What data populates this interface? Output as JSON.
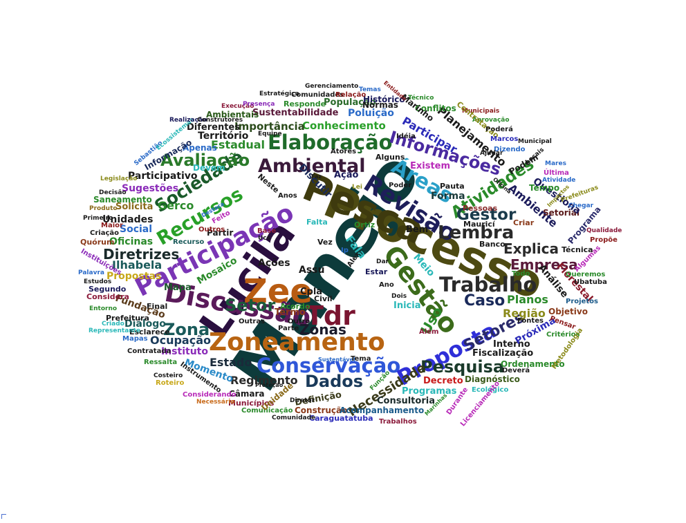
{
  "word_cloud": {
    "words": [
      {
        "text": "Manejo",
        "color": "#0d3b3b"
      },
      {
        "text": "Processo",
        "color": "#4d4a12"
      },
      {
        "text": "Pesca",
        "color": "#3e3a0e"
      },
      {
        "text": "Lucila",
        "color": "#2a0f3f"
      },
      {
        "text": "Zee",
        "color": "#b85c12"
      },
      {
        "text": "Gestão",
        "color": "#3c6b1b"
      },
      {
        "text": "Discussão",
        "color": "#5a1a5a"
      },
      {
        "text": "Participação",
        "color": "#7a35b5"
      },
      {
        "text": "Zoneamento",
        "color": "#b86412"
      },
      {
        "text": "Tdr",
        "color": "#7a1430"
      },
      {
        "text": "Revisão",
        "color": "#1e1e5a"
      },
      {
        "text": "Conservação",
        "color": "#2f57d8"
      },
      {
        "text": "Trabalho",
        "color": "#2a2a2a"
      },
      {
        "text": "Proposta",
        "color": "#2f2fd8"
      },
      {
        "text": "Elaboração",
        "color": "#1f6b2a"
      },
      {
        "text": "Ambiental",
        "color": "#3a1a3a"
      },
      {
        "text": "Recursos",
        "color": "#28a028"
      },
      {
        "text": "Sociedade",
        "color": "#1a5a2a"
      },
      {
        "text": "Informações",
        "color": "#4a2aa0"
      },
      {
        "text": "Áreas",
        "color": "#2aa0c8"
      },
      {
        "text": "Atividades",
        "color": "#2a8a2a"
      },
      {
        "text": "Lembra",
        "color": "#2a2a2a"
      },
      {
        "text": "Gestor",
        "color": "#1a3a4a"
      },
      {
        "text": "Setor",
        "color": "#1a5a3a"
      },
      {
        "text": "Dados",
        "color": "#1a3a5a"
      },
      {
        "text": "Pesquisa",
        "color": "#1a3a2a"
      },
      {
        "text": "Caso",
        "color": "#1a2a5a"
      },
      {
        "text": "Setores",
        "color": "#2a2a6a"
      },
      {
        "text": "Empresa",
        "color": "#5a1a3a"
      },
      {
        "text": "Explica",
        "color": "#2a2a2a"
      },
      {
        "text": "Avaliação",
        "color": "#2a7a2a"
      },
      {
        "text": "Diretrizes",
        "color": "#1a2a2a"
      },
      {
        "text": "Zona",
        "color": "#1a5a5a"
      },
      {
        "text": "Zonas",
        "color": "#1a1a2a"
      },
      {
        "text": "Estado",
        "color": "#1a2a3a"
      },
      {
        "text": "Regimento",
        "color": "#2a2a2a"
      },
      {
        "text": "Necessidade",
        "color": "#3a3a1a"
      },
      {
        "text": "Uso",
        "color": "#2a8a2a"
      },
      {
        "text": "Planos",
        "color": "#2a8a2a"
      },
      {
        "text": "Região",
        "color": "#8a8a1a"
      },
      {
        "text": "Conhecimento",
        "color": "#2aa02a"
      },
      {
        "text": "Planejamento",
        "color": "#1a1a1a"
      },
      {
        "text": "Participar",
        "color": "#2a2ab8"
      },
      {
        "text": "Ambiente",
        "color": "#1a1a5a"
      },
      {
        "text": "Estadual",
        "color": "#2a8a2a"
      },
      {
        "text": "Importância",
        "color": "#2a4a1a"
      },
      {
        "text": "Território",
        "color": "#1a1a1a"
      },
      {
        "text": "Sustentabilidade",
        "color": "#5a1a3a"
      },
      {
        "text": "Sugestões",
        "color": "#8a2ab8"
      },
      {
        "text": "Participativo",
        "color": "#1a1a1a"
      },
      {
        "text": "Unidades",
        "color": "#1a1a1a"
      },
      {
        "text": "Oficinas",
        "color": "#2a8a2a"
      },
      {
        "text": "Social",
        "color": "#2a6ac8"
      },
      {
        "text": "Ilhabela",
        "color": "#1a5a5a"
      },
      {
        "text": "Propostas",
        "color": "#c8a81a"
      },
      {
        "text": "Ações",
        "color": "#1a1a1a"
      },
      {
        "text": "Mosaico",
        "color": "#2a8a2a"
      },
      {
        "text": "Mapa",
        "color": "#1a5a2a"
      },
      {
        "text": "Fundação",
        "color": "#5a3a1a"
      },
      {
        "text": "Diálogo",
        "color": "#1a5a5a"
      },
      {
        "text": "Ocupação",
        "color": "#1a3a5a"
      },
      {
        "text": "Instituto",
        "color": "#8a2ab8"
      },
      {
        "text": "Momento",
        "color": "#2a8ac8"
      },
      {
        "text": "Definição",
        "color": "#3a3a1a"
      },
      {
        "text": "Construção",
        "color": "#8a3a1a"
      },
      {
        "text": "Acompanhamento",
        "color": "#1a5a8a"
      },
      {
        "text": "Consultoria",
        "color": "#1a2a2a"
      },
      {
        "text": "Programas",
        "color": "#2ab8b8"
      },
      {
        "text": "Decreto",
        "color": "#c81a1a"
      },
      {
        "text": "Diagnóstico",
        "color": "#3a5a1a"
      },
      {
        "text": "Fiscalização",
        "color": "#1a1a1a"
      },
      {
        "text": "Ordenamento",
        "color": "#2a8a2a"
      },
      {
        "text": "Interno",
        "color": "#1a1a1a"
      },
      {
        "text": "Próxima",
        "color": "#2a2ab8"
      },
      {
        "text": "Análise",
        "color": "#1a1a1a"
      },
      {
        "text": "Florestal",
        "color": "#8a1a2a"
      },
      {
        "text": "Objetivo",
        "color": "#8a3a1a"
      },
      {
        "text": "Técnica",
        "color": "#1a1a1a"
      },
      {
        "text": "Setorial",
        "color": "#5a1a1a"
      },
      {
        "text": "Questiona",
        "color": "#1a1a5a"
      },
      {
        "text": "Tempo",
        "color": "#2a8a2a"
      },
      {
        "text": "Forma",
        "color": "#1a3a3a"
      },
      {
        "text": "Existem",
        "color": "#b82ab8"
      },
      {
        "text": "Podem",
        "color": "#1a1a1a"
      },
      {
        "text": "Poluição",
        "color": "#2a6ac8"
      },
      {
        "text": "População",
        "color": "#2a6a2a"
      },
      {
        "text": "Normas",
        "color": "#1a1a1a"
      },
      {
        "text": "Conflitos",
        "color": "#2a8a2a"
      },
      {
        "text": "Marinho",
        "color": "#1a1a1a"
      },
      {
        "text": "Histórico",
        "color": "#1a1a5a"
      },
      {
        "text": "Ambientais",
        "color": "#2a5a1a"
      },
      {
        "text": "Diferentes",
        "color": "#1a1a1a"
      },
      {
        "text": "Apenas",
        "color": "#2a6ac8"
      },
      {
        "text": "Informação",
        "color": "#1a2a5a"
      },
      {
        "text": "Devem",
        "color": "#2ab8b8"
      },
      {
        "text": "Gerco",
        "color": "#2a8a2a"
      },
      {
        "text": "Solicita",
        "color": "#8a6a1a"
      },
      {
        "text": "Saneamento",
        "color": "#2a8a2a"
      },
      {
        "text": "Partir",
        "color": "#1a1a1a"
      },
      {
        "text": "Discutir",
        "color": "#1a2a5a"
      },
      {
        "text": "Fala",
        "color": "#2ab8b8"
      },
      {
        "text": "Assu",
        "color": "#1a1a1a"
      },
      {
        "text": "Termo",
        "color": "#8a3a1a"
      },
      {
        "text": "Inicia",
        "color": "#2ab8b8"
      },
      {
        "text": "Meio",
        "color": "#2ab8b8"
      },
      {
        "text": "Cpla",
        "color": "#1a1a1a"
      },
      {
        "text": "Bem",
        "color": "#1a1a1a"
      },
      {
        "text": "Criar",
        "color": "#8a3a1a"
      },
      {
        "text": "Banco",
        "color": "#1a1a1a"
      },
      {
        "text": "Pauta",
        "color": "#1a1a1a"
      },
      {
        "text": "Pessoas",
        "color": "#8a2a2a"
      },
      {
        "text": "Mauricí",
        "color": "#1a1a1a"
      },
      {
        "text": "Programa",
        "color": "#2a2a6a"
      },
      {
        "text": "Propõe",
        "color": "#8a1a1a"
      },
      {
        "text": "Queremos",
        "color": "#2a8a2a"
      },
      {
        "text": "Ubatuba",
        "color": "#1a1a1a"
      },
      {
        "text": "Projetos",
        "color": "#1a5a8a"
      },
      {
        "text": "Fontes",
        "color": "#1a1a1a"
      },
      {
        "text": "Pensar",
        "color": "#8a1a1a"
      },
      {
        "text": "Critérios",
        "color": "#2a8a2a"
      },
      {
        "text": "Metodologia",
        "color": "#8a8a1a"
      },
      {
        "text": "Deverá",
        "color": "#1a1a1a"
      },
      {
        "text": "Ecológico",
        "color": "#2ab8b8"
      },
      {
        "text": "Licenciamento",
        "color": "#b82ab8"
      },
      {
        "text": "Durante",
        "color": "#b82ab8"
      },
      {
        "text": "Trabalhos",
        "color": "#8a1a3a"
      },
      {
        "text": "Caraguatatuba",
        "color": "#2a2ab8"
      },
      {
        "text": "Diretor",
        "color": "#1a1a1a"
      },
      {
        "text": "Comunidade",
        "color": "#1a1a1a"
      },
      {
        "text": "Comunicação",
        "color": "#2a8a2a"
      },
      {
        "text": "Municípios",
        "color": "#8a1a3a"
      },
      {
        "text": "Unidade",
        "color": "#8a6a1a"
      },
      {
        "text": "Câmara",
        "color": "#1a1a1a"
      },
      {
        "text": "Considerando",
        "color": "#b82ab8"
      },
      {
        "text": "Necessário",
        "color": "#c86a1a"
      },
      {
        "text": "Roteiro",
        "color": "#c8a81a"
      },
      {
        "text": "Instrumento",
        "color": "#1a1a1a"
      },
      {
        "text": "Costeiro",
        "color": "#1a1a1a"
      },
      {
        "text": "Ressalta",
        "color": "#2a8a2a"
      },
      {
        "text": "Contratada",
        "color": "#1a1a1a"
      },
      {
        "text": "Mapas",
        "color": "#2a6ac8"
      },
      {
        "text": "Esclarece",
        "color": "#1a1a1a"
      },
      {
        "text": "Representante",
        "color": "#2ab8b8"
      },
      {
        "text": "Criado",
        "color": "#2ab8b8"
      },
      {
        "text": "Prefeitura",
        "color": "#1a1a1a"
      },
      {
        "text": "Entorno",
        "color": "#2a8a2a"
      },
      {
        "text": "Final",
        "color": "#1a1a1a"
      },
      {
        "text": "Considera",
        "color": "#8a1a3a"
      },
      {
        "text": "Segundo",
        "color": "#1a1a5a"
      },
      {
        "text": "Estudos",
        "color": "#1a1a1a"
      },
      {
        "text": "Palavra",
        "color": "#2a6ac8"
      },
      {
        "text": "Instituições",
        "color": "#8a2ab8"
      },
      {
        "text": "Quórum",
        "color": "#8a3a1a"
      },
      {
        "text": "Criação",
        "color": "#1a1a1a"
      },
      {
        "text": "Maior",
        "color": "#8a1a1a"
      },
      {
        "text": "Primeiro",
        "color": "#1a1a1a"
      },
      {
        "text": "Produto",
        "color": "#8a6a1a"
      },
      {
        "text": "Decisão",
        "color": "#1a1a1a"
      },
      {
        "text": "Legislação",
        "color": "#8a8a1a"
      },
      {
        "text": "Sebastião",
        "color": "#2a6ac8"
      },
      {
        "text": "Ecossistemas",
        "color": "#2ab8b8"
      },
      {
        "text": "Realização",
        "color": "#1a1a5a"
      },
      {
        "text": "Construtores",
        "color": "#1a1a1a"
      },
      {
        "text": "Execução",
        "color": "#8a1a3a"
      },
      {
        "text": "Presença",
        "color": "#8a2ab8"
      },
      {
        "text": "Estratégica",
        "color": "#1a1a1a"
      },
      {
        "text": "Gerenciamento",
        "color": "#1a1a1a"
      },
      {
        "text": "Comunidades",
        "color": "#1a1a1a"
      },
      {
        "text": "Relação",
        "color": "#8a1a1a"
      },
      {
        "text": "Temas",
        "color": "#2a6ac8"
      },
      {
        "text": "Entidade",
        "color": "#8a1a1a"
      },
      {
        "text": "Técnico",
        "color": "#2a8a2a"
      },
      {
        "text": "Responde",
        "color": "#2a8a2a"
      },
      {
        "text": "Municipais",
        "color": "#8a1a1a"
      },
      {
        "text": "Aprovação",
        "color": "#2a8a2a"
      },
      {
        "text": "Contratação",
        "color": "#8a8a1a"
      },
      {
        "text": "Poderá",
        "color": "#1a1a1a"
      },
      {
        "text": "Marcos",
        "color": "#2a2ab8"
      },
      {
        "text": "Municipal",
        "color": "#1a1a1a"
      },
      {
        "text": "Dizendo",
        "color": "#2a6ac8"
      },
      {
        "text": "Ajudar",
        "color": "#1a1a1a"
      },
      {
        "text": "Locais",
        "color": "#1a1a1a"
      },
      {
        "text": "Mares",
        "color": "#2a6ac8"
      },
      {
        "text": "Última",
        "color": "#b82ab8"
      },
      {
        "text": "Atividade",
        "color": "#2a6ac8"
      },
      {
        "text": "Prefeituras",
        "color": "#8a8a1a"
      },
      {
        "text": "Chegar",
        "color": "#2a6ac8"
      },
      {
        "text": "Qualidade",
        "color": "#8a1a3a"
      },
      {
        "text": "Algumas",
        "color": "#b82ab8"
      },
      {
        "text": "Outros",
        "color": "#8a1a1a"
      },
      {
        "text": "Recurso",
        "color": "#1a5a5a"
      },
      {
        "text": "Feito",
        "color": "#b82ab8"
      },
      {
        "text": "Neste",
        "color": "#1a1a1a"
      },
      {
        "text": "Anos",
        "color": "#1a1a1a"
      },
      {
        "text": "Base",
        "color": "#8a1a3a"
      },
      {
        "text": "Ucs",
        "color": "#1a1a1a"
      },
      {
        "text": "Equipe",
        "color": "#1a1a1a"
      },
      {
        "text": "Atores",
        "color": "#1a1a1a"
      },
      {
        "text": "Ação",
        "color": "#1a1a5a"
      },
      {
        "text": "Alguns",
        "color": "#1a1a1a"
      },
      {
        "text": "Idéia",
        "color": "#1a1a1a"
      },
      {
        "text": "Dar",
        "color": "#1a1a1a"
      },
      {
        "text": "Poder",
        "color": "#1a1a1a"
      },
      {
        "text": "Lei",
        "color": "#8a8a1a"
      },
      {
        "text": "Ortiz",
        "color": "#2a8a2a"
      },
      {
        "text": "Falta",
        "color": "#2ab8b8"
      },
      {
        "text": "Vez",
        "color": "#1a1a1a"
      },
      {
        "text": "Ip",
        "color": "#2a6ac8"
      },
      {
        "text": "Alex",
        "color": "#1a1a1a"
      },
      {
        "text": "Estar",
        "color": "#1a1a5a"
      },
      {
        "text": "Ano",
        "color": "#1a1a1a"
      },
      {
        "text": "Dois",
        "color": "#1a1a1a"
      },
      {
        "text": "Civil",
        "color": "#1a1a1a"
      },
      {
        "text": "Acordo",
        "color": "#2a8a2a"
      },
      {
        "text": "Outro",
        "color": "#1a1a1a"
      },
      {
        "text": "Parte",
        "color": "#1a1a1a"
      },
      {
        "text": "Outras",
        "color": "#1a1a1a"
      },
      {
        "text": "Todo",
        "color": "#2a8a2a"
      },
      {
        "text": "Além",
        "color": "#8a1a3a"
      },
      {
        "text": "Sustentável",
        "color": "#2a6ac8"
      },
      {
        "text": "Tema",
        "color": "#1a1a1a"
      },
      {
        "text": "Função",
        "color": "#2a8a2a"
      },
      {
        "text": "Proteção",
        "color": "#1a1a1a"
      },
      {
        "text": "Marinhas",
        "color": "#2a8a2a"
      },
      {
        "text": "Destaca",
        "color": "#2a6ac8"
      },
      {
        "text": "Faz",
        "color": "#1a1a1a"
      },
      {
        "text": "Oficina",
        "color": "#1a1a1a"
      },
      {
        "text": "Impactos",
        "color": "#8a8a1a"
      }
    ]
  }
}
